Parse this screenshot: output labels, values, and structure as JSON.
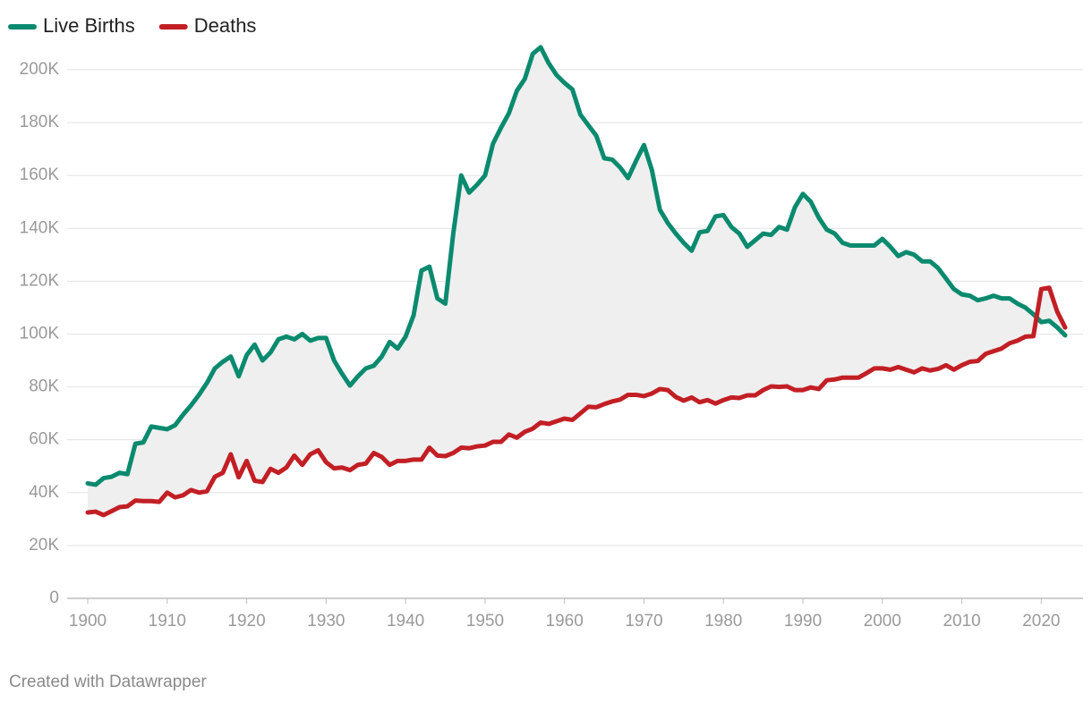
{
  "chart_data": {
    "type": "line",
    "legend": "top-left",
    "grid": true,
    "source": "Created with Datawrapper",
    "x": [
      1900,
      1901,
      1902,
      1903,
      1904,
      1905,
      1906,
      1907,
      1908,
      1909,
      1910,
      1911,
      1912,
      1913,
      1914,
      1915,
      1916,
      1917,
      1918,
      1919,
      1920,
      1921,
      1922,
      1923,
      1924,
      1925,
      1926,
      1927,
      1928,
      1929,
      1930,
      1931,
      1932,
      1933,
      1934,
      1935,
      1936,
      1937,
      1938,
      1939,
      1940,
      1941,
      1942,
      1943,
      1944,
      1945,
      1946,
      1947,
      1948,
      1949,
      1950,
      1951,
      1952,
      1953,
      1954,
      1955,
      1956,
      1957,
      1958,
      1959,
      1960,
      1961,
      1962,
      1963,
      1964,
      1965,
      1966,
      1967,
      1968,
      1969,
      1970,
      1971,
      1972,
      1973,
      1974,
      1975,
      1976,
      1977,
      1978,
      1979,
      1980,
      1981,
      1982,
      1983,
      1984,
      1985,
      1986,
      1987,
      1988,
      1989,
      1990,
      1991,
      1992,
      1993,
      1994,
      1995,
      1996,
      1997,
      1998,
      1999,
      2000,
      2001,
      2002,
      2003,
      2004,
      2005,
      2006,
      2007,
      2008,
      2009,
      2010,
      2011,
      2012,
      2013,
      2014,
      2015,
      2016,
      2017,
      2018,
      2019,
      2020,
      2021,
      2022,
      2023
    ],
    "xlim": [
      1900,
      2023
    ],
    "xticks": [
      1900,
      1910,
      1920,
      1930,
      1940,
      1950,
      1960,
      1970,
      1980,
      1990,
      2000,
      2010,
      2020
    ],
    "ylim": [
      0,
      215000
    ],
    "yticks": [
      0,
      {
        "value": 20000,
        "label": "20K"
      },
      {
        "value": 40000,
        "label": "40K"
      },
      {
        "value": 60000,
        "label": "60K"
      },
      {
        "value": 80000,
        "label": "80K"
      },
      {
        "value": 100000,
        "label": "100K"
      },
      {
        "value": 120000,
        "label": "120K"
      },
      {
        "value": 140000,
        "label": "140K"
      },
      {
        "value": 160000,
        "label": "160K"
      },
      {
        "value": 180000,
        "label": "180K"
      },
      {
        "value": 200000,
        "label": "200K"
      }
    ],
    "fill_between": "#efefef",
    "series": [
      {
        "name": "Live Births",
        "color": "#0a8a6e",
        "values": [
          43500,
          43000,
          45500,
          46000,
          47500,
          47000,
          58500,
          59000,
          65000,
          64500,
          64000,
          65500,
          69500,
          73000,
          77000,
          81500,
          87000,
          89500,
          91500,
          84000,
          92000,
          96000,
          90000,
          93000,
          98000,
          99000,
          98000,
          100000,
          97500,
          98500,
          98500,
          90000,
          85000,
          80500,
          84000,
          87000,
          88000,
          91500,
          97000,
          94500,
          99000,
          107000,
          124000,
          125500,
          113500,
          111500,
          138000,
          160000,
          153500,
          156500,
          160000,
          172000,
          178000,
          183500,
          192000,
          196500,
          206000,
          208500,
          202500,
          198000,
          195000,
          192500,
          183000,
          179000,
          175000,
          166500,
          166000,
          163000,
          159000,
          165500,
          171500,
          162000,
          147000,
          142000,
          138000,
          134500,
          131500,
          138500,
          139000,
          144500,
          145000,
          140500,
          138000,
          133000,
          135500,
          138000,
          137500,
          140500,
          139500,
          148000,
          153000,
          150000,
          144000,
          139500,
          138000,
          134500,
          133500,
          133500,
          133500,
          133500,
          136000,
          133000,
          129500,
          131000,
          130000,
          127500,
          127500,
          125000,
          121000,
          117000,
          115000,
          114500,
          112800,
          113500,
          114500,
          113500,
          113500,
          111500,
          110000,
          107500,
          104500,
          105000,
          102500,
          99500
        ]
      },
      {
        "name": "Deaths",
        "color": "#c21f25",
        "values": [
          32500,
          32800,
          31500,
          33000,
          34500,
          34800,
          37000,
          36800,
          36800,
          36500,
          40000,
          38200,
          39000,
          41000,
          40000,
          40500,
          46000,
          47500,
          54500,
          45800,
          52000,
          44500,
          44000,
          49000,
          47500,
          49500,
          54000,
          50500,
          54500,
          56000,
          51500,
          49200,
          49500,
          48500,
          50500,
          51000,
          55000,
          53500,
          50500,
          52000,
          52000,
          52500,
          52500,
          57000,
          54000,
          53800,
          55000,
          57000,
          56800,
          57500,
          57800,
          59200,
          59200,
          62000,
          60800,
          63000,
          64200,
          66500,
          66000,
          67000,
          68000,
          67500,
          70000,
          72500,
          72300,
          73500,
          74500,
          75200,
          77000,
          77000,
          76500,
          77500,
          79200,
          78800,
          76200,
          74800,
          76000,
          74200,
          75000,
          73700,
          75000,
          76000,
          75800,
          76800,
          76800,
          78800,
          80200,
          80000,
          80200,
          78800,
          78800,
          79800,
          79200,
          82500,
          82800,
          83500,
          83500,
          83500,
          85200,
          87000,
          87000,
          86500,
          87500,
          86500,
          85500,
          87000,
          86200,
          86800,
          88200,
          86500,
          88200,
          89500,
          89800,
          92500,
          93500,
          94500,
          96500,
          97500,
          99000,
          99200,
          117000,
          117500,
          108500,
          102500
        ]
      }
    ]
  }
}
